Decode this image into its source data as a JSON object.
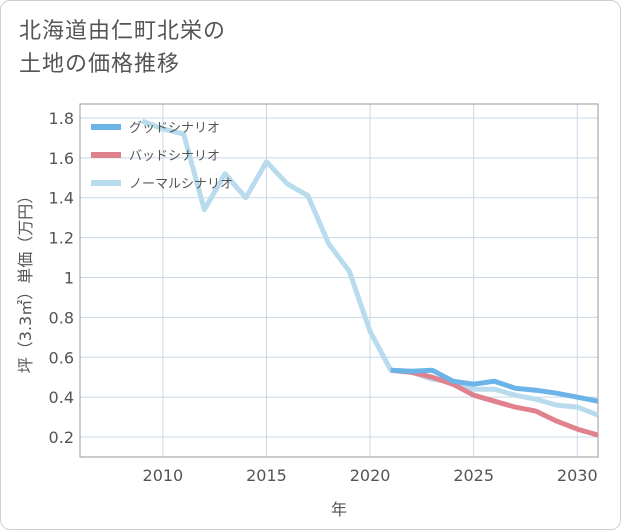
{
  "title_line1": "北海道由仁町北栄の",
  "title_line2": "土地の価格推移",
  "chart_data": {
    "type": "line",
    "xlabel": "年",
    "ylabel": "坪（3.3㎡）単価（万円）",
    "xlim": [
      2006,
      2031
    ],
    "ylim": [
      0.1,
      1.87
    ],
    "x_ticks": [
      2010,
      2015,
      2020,
      2025,
      2030
    ],
    "y_ticks": [
      0.2,
      0.4,
      0.6,
      0.8,
      1,
      1.2,
      1.4,
      1.6,
      1.8
    ],
    "x_tick_labels": [
      "2010",
      "2015",
      "2020",
      "2025",
      "2030"
    ],
    "y_tick_labels": [
      "0.2",
      "0.4",
      "0.6",
      "0.8",
      "1",
      "1.2",
      "1.4",
      "1.6",
      "1.8"
    ],
    "grid": true,
    "legend_position": "top-left",
    "series": [
      {
        "name": "グッドシナリオ",
        "color": "#6cb4e8",
        "points": [
          [
            2021,
            0.535
          ],
          [
            2022,
            0.53
          ],
          [
            2023,
            0.535
          ],
          [
            2024,
            0.48
          ],
          [
            2025,
            0.465
          ],
          [
            2026,
            0.48
          ],
          [
            2027,
            0.445
          ],
          [
            2028,
            0.435
          ],
          [
            2029,
            0.42
          ],
          [
            2030,
            0.4
          ],
          [
            2031,
            0.38
          ]
        ]
      },
      {
        "name": "バッドシナリオ",
        "color": "#e0828e",
        "points": [
          [
            2021,
            0.535
          ],
          [
            2022,
            0.525
          ],
          [
            2023,
            0.5
          ],
          [
            2024,
            0.465
          ],
          [
            2025,
            0.41
          ],
          [
            2026,
            0.38
          ],
          [
            2027,
            0.35
          ],
          [
            2028,
            0.33
          ],
          [
            2029,
            0.28
          ],
          [
            2030,
            0.24
          ],
          [
            2031,
            0.21
          ]
        ]
      },
      {
        "name": "ノーマルシナリオ",
        "color": "#b8dcee",
        "points": [
          [
            2009,
            1.785
          ],
          [
            2010,
            1.745
          ],
          [
            2011,
            1.72
          ],
          [
            2012,
            1.34
          ],
          [
            2013,
            1.52
          ],
          [
            2014,
            1.4
          ],
          [
            2015,
            1.58
          ],
          [
            2016,
            1.47
          ],
          [
            2017,
            1.41
          ],
          [
            2018,
            1.17
          ],
          [
            2019,
            1.03
          ],
          [
            2020,
            0.73
          ],
          [
            2021,
            0.535
          ],
          [
            2022,
            0.525
          ],
          [
            2023,
            0.49
          ],
          [
            2024,
            0.475
          ],
          [
            2025,
            0.44
          ],
          [
            2026,
            0.44
          ],
          [
            2027,
            0.41
          ],
          [
            2028,
            0.39
          ],
          [
            2029,
            0.36
          ],
          [
            2030,
            0.35
          ],
          [
            2031,
            0.31
          ]
        ]
      }
    ]
  }
}
